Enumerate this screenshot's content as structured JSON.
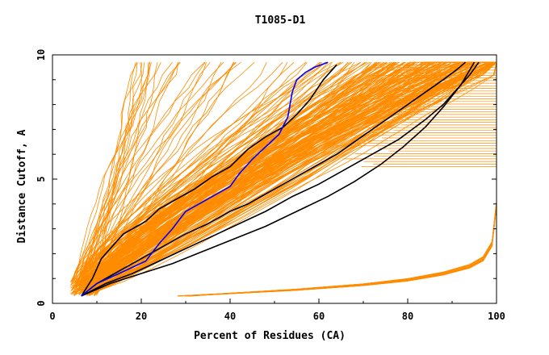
{
  "chart_data": {
    "type": "line",
    "title": "T1085-D1",
    "xlabel": "Percent of Residues (CA)",
    "ylabel": "Distance Cutoff, A",
    "xlim": [
      0,
      100
    ],
    "ylim": [
      0,
      10
    ],
    "xticks": [
      0,
      20,
      40,
      60,
      80,
      100
    ],
    "yticks": [
      0,
      5,
      10
    ],
    "grid": false,
    "colors": {
      "bundle": "#ff8c00",
      "highlight": "#0000ff",
      "reference": "#000000",
      "axes": "#000000",
      "background": "#ffffff"
    },
    "series": [
      {
        "style": "highlight",
        "x": [
          6.5,
          10,
          15,
          21,
          24,
          27,
          30,
          33,
          36,
          40,
          42,
          45,
          48,
          51,
          53,
          54,
          55,
          57,
          59,
          62
        ],
        "y": [
          0.3,
          0.8,
          1.2,
          1.7,
          2.4,
          3.0,
          3.7,
          4.0,
          4.3,
          4.7,
          5.2,
          5.8,
          6.3,
          6.8,
          7.5,
          8.5,
          9.0,
          9.3,
          9.5,
          9.7
        ]
      },
      {
        "style": "reference",
        "x": [
          6.5,
          9,
          11,
          13,
          16,
          19,
          21,
          24,
          28,
          32,
          36,
          40,
          44,
          48,
          52,
          55,
          58,
          61,
          64
        ],
        "y": [
          0.3,
          1.0,
          1.8,
          2.2,
          2.8,
          3.1,
          3.3,
          3.8,
          4.2,
          4.6,
          5.1,
          5.5,
          6.2,
          6.7,
          7.1,
          7.6,
          8.2,
          9.0,
          9.6
        ]
      },
      {
        "style": "reference",
        "x": [
          6.5,
          10,
          14,
          18,
          22,
          26,
          30,
          35,
          40,
          44,
          48,
          52,
          56,
          60,
          64,
          68,
          72,
          76,
          80,
          84,
          88,
          91,
          93
        ],
        "y": [
          0.3,
          0.8,
          1.2,
          1.6,
          2.0,
          2.4,
          2.8,
          3.2,
          3.7,
          4.0,
          4.4,
          4.8,
          5.2,
          5.6,
          6.0,
          6.5,
          7.0,
          7.5,
          8.0,
          8.5,
          9.0,
          9.4,
          9.7
        ]
      },
      {
        "style": "reference",
        "x": [
          6.5,
          12,
          18,
          24,
          30,
          36,
          42,
          48,
          54,
          60,
          66,
          72,
          78,
          84,
          88,
          91,
          94,
          96
        ],
        "y": [
          0.3,
          0.8,
          1.2,
          1.7,
          2.2,
          2.7,
          3.2,
          3.7,
          4.3,
          4.8,
          5.4,
          6.0,
          6.6,
          7.4,
          8.0,
          8.6,
          9.2,
          9.7
        ]
      },
      {
        "style": "reference",
        "x": [
          6.5,
          13,
          20,
          27,
          34,
          41,
          48,
          55,
          62,
          68,
          74,
          79,
          84,
          88,
          92,
          95
        ],
        "y": [
          0.3,
          0.8,
          1.2,
          1.6,
          2.1,
          2.6,
          3.1,
          3.7,
          4.3,
          4.9,
          5.6,
          6.3,
          7.1,
          7.9,
          8.8,
          9.7
        ]
      },
      {
        "style": "low-bundle",
        "x": [
          28,
          40,
          55,
          70,
          80,
          88,
          94,
          97,
          99,
          100
        ],
        "y": [
          0.3,
          0.4,
          0.55,
          0.75,
          0.95,
          1.2,
          1.5,
          1.8,
          2.4,
          4.0
        ]
      }
    ],
    "bundle_count": 230
  }
}
